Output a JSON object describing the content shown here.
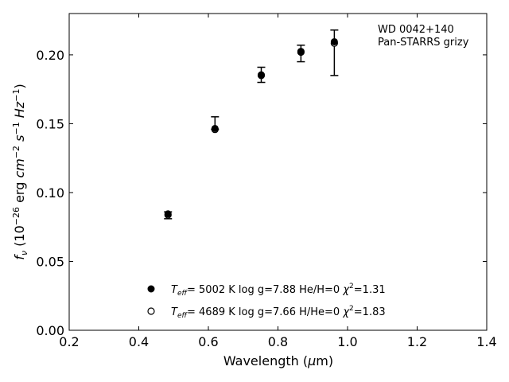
{
  "chart_data": {
    "type": "scatter",
    "title": "",
    "xlabel": "Wavelength (μm)",
    "ylabel": "f_ν (10^-26 erg cm^-2 s^-1 Hz^-1)",
    "xlim": [
      0.2,
      1.4
    ],
    "ylim": [
      0.0,
      0.23
    ],
    "xticks": [
      0.2,
      0.4,
      0.6,
      0.8,
      1.0,
      1.2,
      1.4
    ],
    "xtick_labels": [
      "0.2",
      "0.4",
      "0.6",
      "0.8",
      "1.0",
      "1.2",
      "1.4"
    ],
    "yticks": [
      0.0,
      0.05,
      0.1,
      0.15,
      0.2
    ],
    "ytick_labels": [
      "0.00",
      "0.05",
      "0.10",
      "0.15",
      "0.20"
    ],
    "grid": false,
    "annotation": [
      "WD 0042+140",
      "Pan-STARRS grizy"
    ],
    "annotation_placement": "top-right",
    "legend_placement": "lower-center",
    "observed": {
      "x": [
        0.484,
        0.619,
        0.752,
        0.866,
        0.962
      ],
      "y_low": [
        0.081,
        0.146,
        0.18,
        0.195,
        0.185
      ],
      "y_high": [
        0.086,
        0.155,
        0.191,
        0.207,
        0.218
      ]
    },
    "series": [
      {
        "name": "Teff= 5002 K log g=7.88 He/H=0 χ²=1.31",
        "marker": "filled-circle",
        "x": [
          0.484,
          0.619,
          0.752,
          0.866,
          0.962
        ],
        "y": [
          0.0845,
          0.1465,
          0.1855,
          0.2025,
          0.2095
        ]
      },
      {
        "name": "Teff= 4689 K log g=7.66 H/He=0 χ²=1.83",
        "marker": "open-circle",
        "x": [
          0.484,
          0.619,
          0.752,
          0.866,
          0.962
        ],
        "y": [
          0.0838,
          0.1458,
          0.185,
          0.202,
          0.2085
        ]
      }
    ],
    "legend": [
      {
        "marker": "filled-circle",
        "teff": "5002 K",
        "logg": "log g=7.88",
        "comp": "He/H=0",
        "chi2": "=1.31"
      },
      {
        "marker": "open-circle",
        "teff": "4689 K",
        "logg": "log g=7.66",
        "comp": "H/He=0",
        "chi2": "=1.83"
      }
    ],
    "colors": {
      "axis": "#000000",
      "marker": "#000000",
      "open_fill": "#ffffff"
    }
  }
}
